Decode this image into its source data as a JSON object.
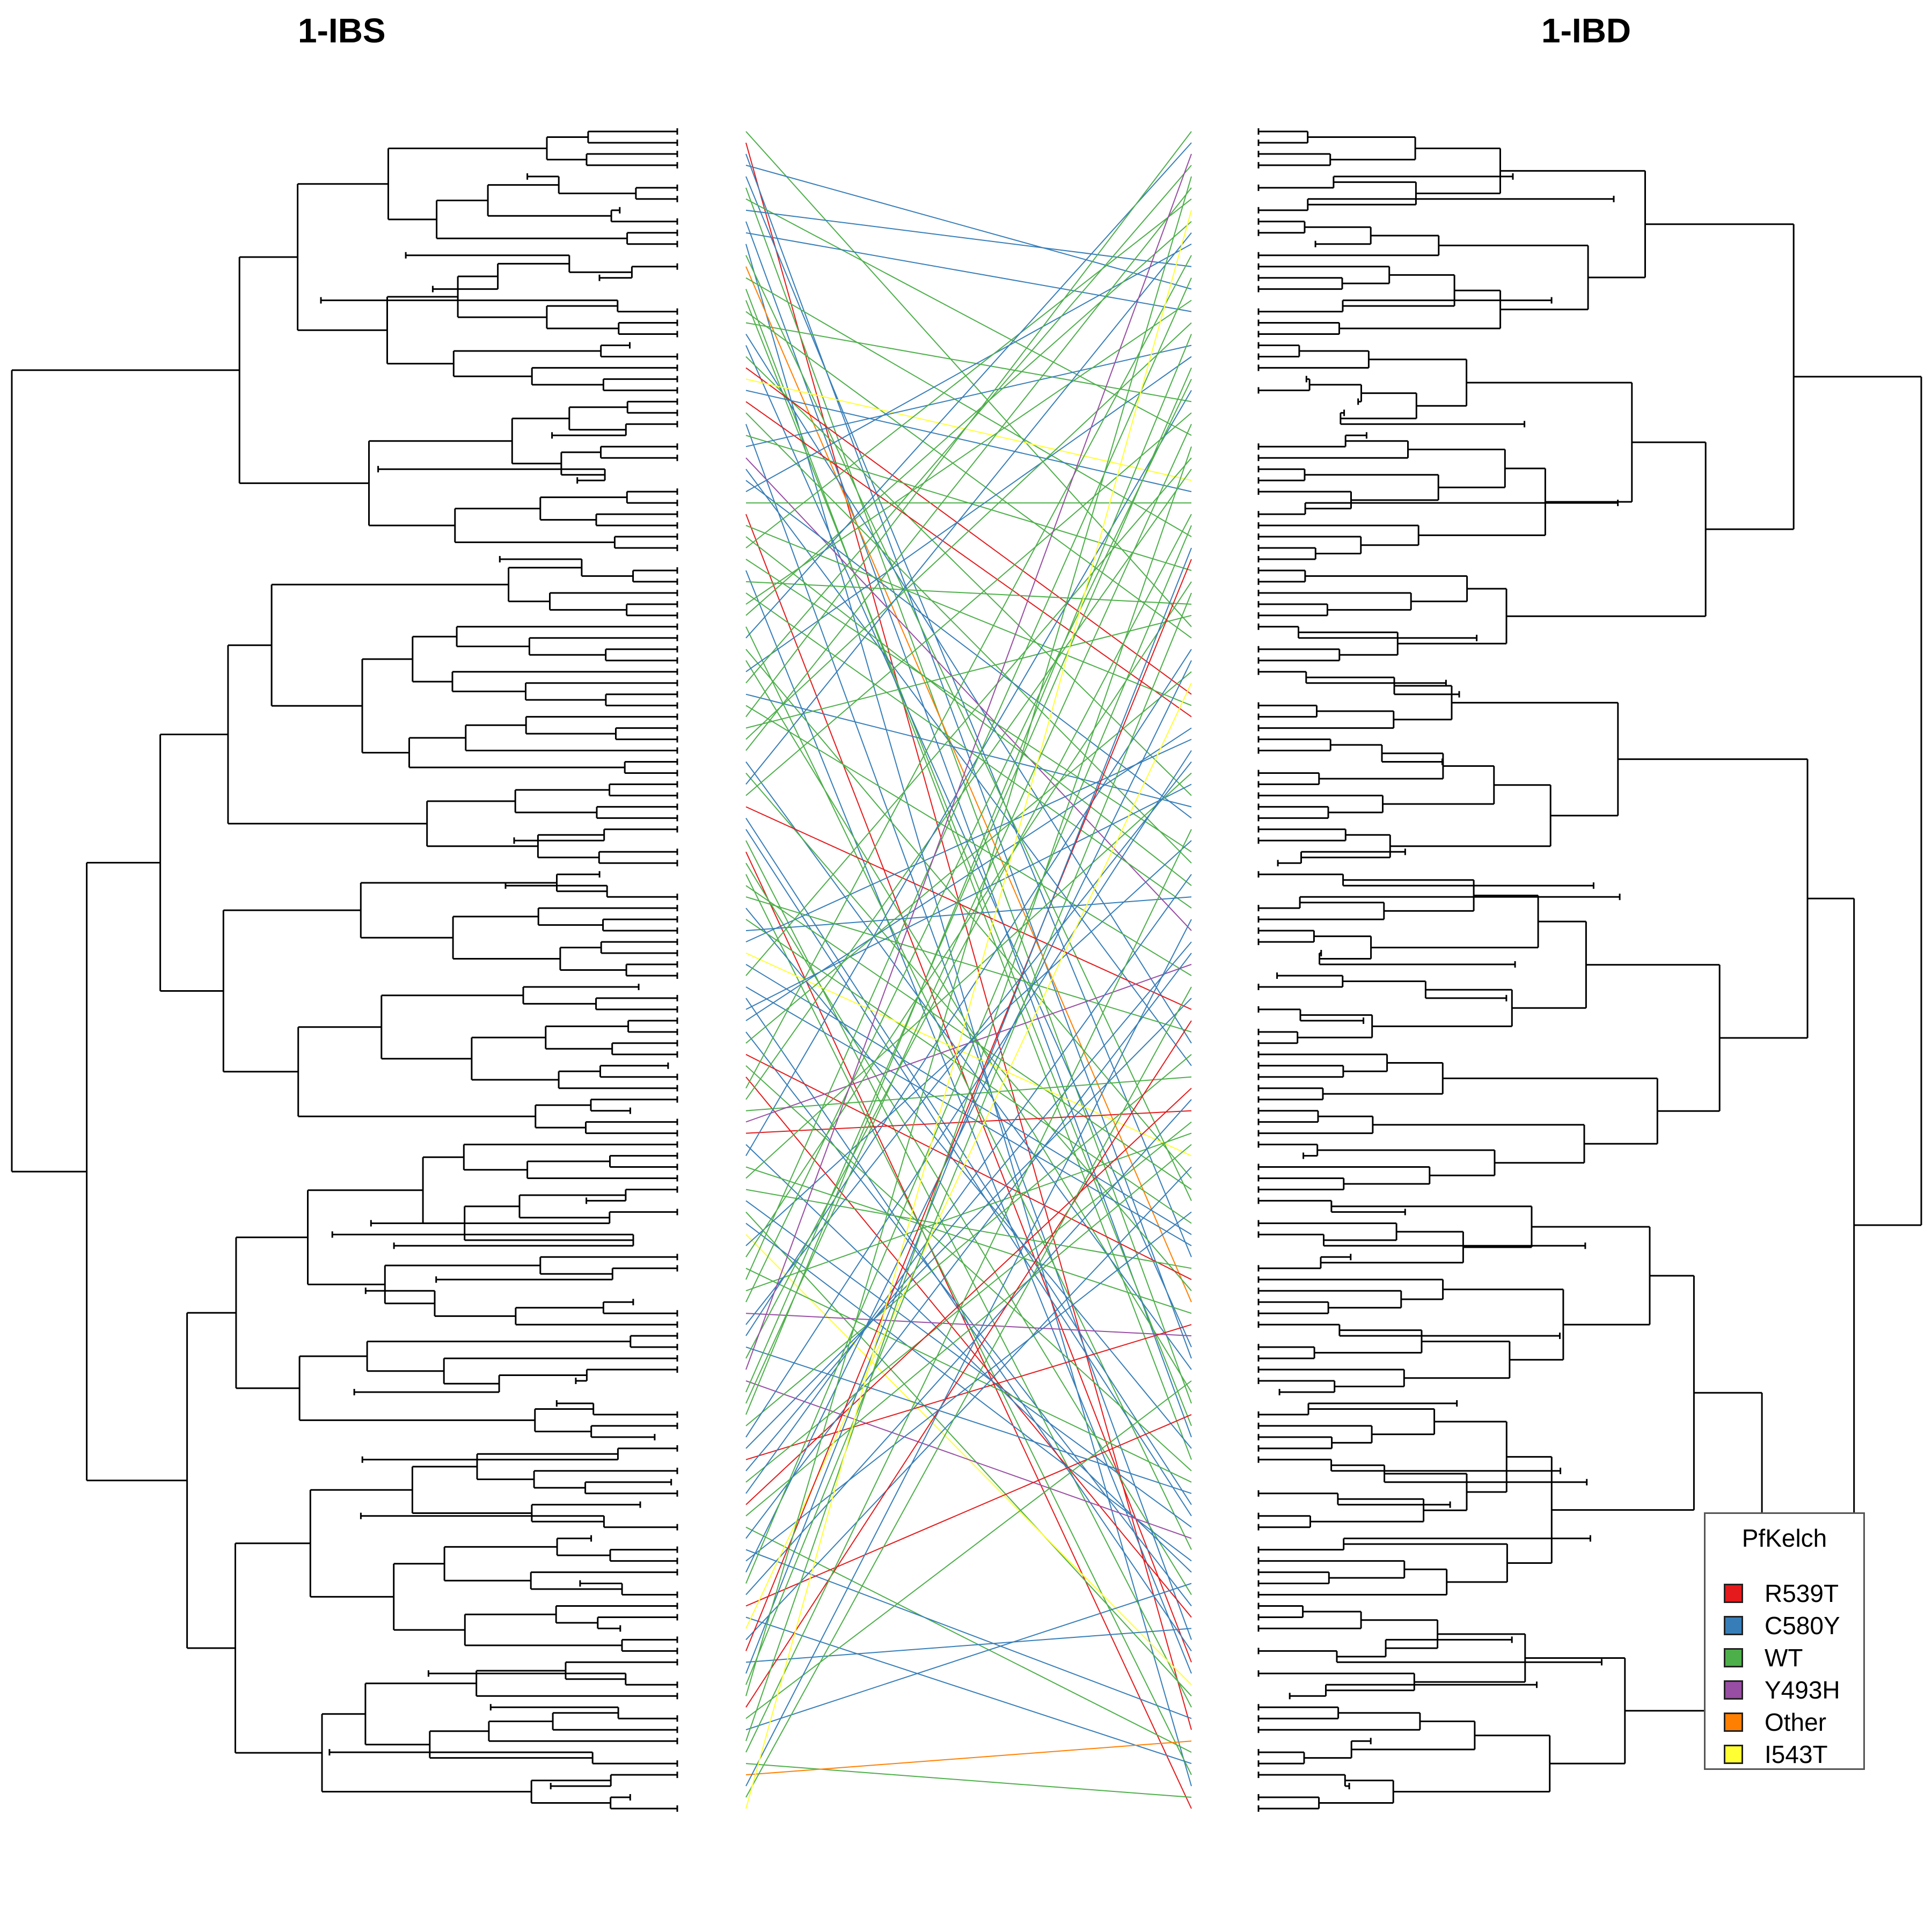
{
  "panels": {
    "left_title": "1-IBS",
    "right_title": "1-IBD"
  },
  "legend": {
    "title": "PfKelch",
    "items": [
      {
        "label": "R539T",
        "color": "#e41a1c"
      },
      {
        "label": "C580Y",
        "color": "#377eb8"
      },
      {
        "label": "WT",
        "color": "#4daf4a"
      },
      {
        "label": "Y493H",
        "color": "#984ea3"
      },
      {
        "label": "Other",
        "color": "#ff7f00"
      },
      {
        "label": "I543T",
        "color": "#ffff33"
      }
    ]
  }
}
